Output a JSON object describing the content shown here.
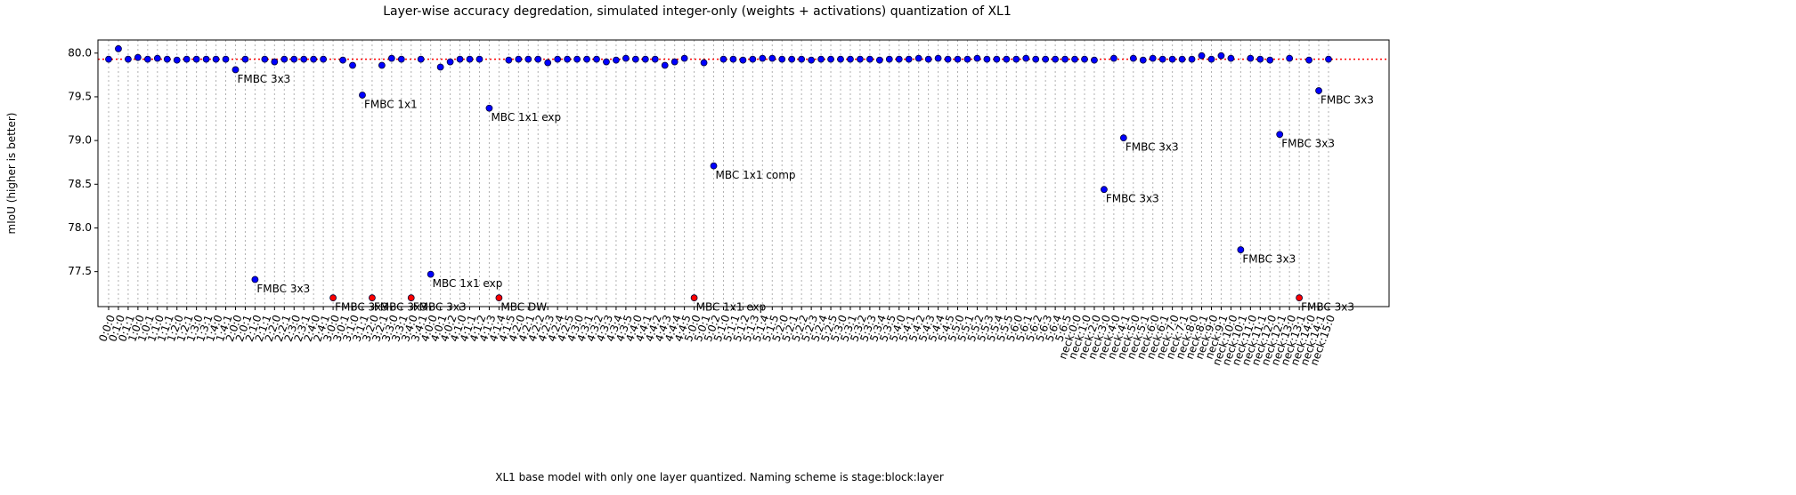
{
  "chart_data": {
    "type": "scatter",
    "title": "Layer-wise accuracy degredation, simulated integer-only (weights + activations) quantization of XL1",
    "x_label": "XL1 base model with only one layer quantized. Naming scheme is stage:block:layer",
    "y_label": "mIoU (higher is better)",
    "categories": [
      "0:0:0",
      "0:1:0",
      "0:1:1",
      "1:0:0",
      "1:0:1",
      "1:1:0",
      "1:1:1",
      "1:2:0",
      "1:2:1",
      "1:3:0",
      "1:3:1",
      "1:4:0",
      "1:4:1",
      "2:0:0",
      "2:0:1",
      "2:1:0",
      "2:1:1",
      "2:2:0",
      "2:2:1",
      "2:3:0",
      "2:3:1",
      "2:4:0",
      "2:4:1",
      "3:0:0",
      "3:0:1",
      "3:1:0",
      "3:1:1",
      "3:2:0",
      "3:2:1",
      "3:3:0",
      "3:3:1",
      "3:4:0",
      "3:4:1",
      "4:0:0",
      "4:0:1",
      "4:0:2",
      "4:1:0",
      "4:1:1",
      "4:1:2",
      "4:1:3",
      "4:1:4",
      "4:1:5",
      "4:2:0",
      "4:2:1",
      "4:2:2",
      "4:2:3",
      "4:2:4",
      "4:2:5",
      "4:3:0",
      "4:3:1",
      "4:3:2",
      "4:3:3",
      "4:3:4",
      "4:3:5",
      "4:4:0",
      "4:4:1",
      "4:4:2",
      "4:4:3",
      "4:4:4",
      "4:4:5",
      "5:0:0",
      "5:0:1",
      "5:0:2",
      "5:1:0",
      "5:1:1",
      "5:1:2",
      "5:1:3",
      "5:1:4",
      "5:1:5",
      "5:2:0",
      "5:2:1",
      "5:2:2",
      "5:2:3",
      "5:2:4",
      "5:2:5",
      "5:3:0",
      "5:3:1",
      "5:3:2",
      "5:3:3",
      "5:3:4",
      "5:3:5",
      "5:4:0",
      "5:4:1",
      "5:4:2",
      "5:4:3",
      "5:4:4",
      "5:4:5",
      "5:5:0",
      "5:5:1",
      "5:5:2",
      "5:5:3",
      "5:5:4",
      "5:5:5",
      "5:6:0",
      "5:6:1",
      "5:6:2",
      "5:6:3",
      "5:6:4",
      "5:6:5",
      "neck:0:0",
      "neck:1:0",
      "neck:2:0",
      "neck:3:0",
      "neck:4:0",
      "neck:4:1",
      "neck:5:0",
      "neck:5:1",
      "neck:6:0",
      "neck:6:1",
      "neck:7:0",
      "neck:7:1",
      "neck:8:0",
      "neck:8:1",
      "neck:9:0",
      "neck:9:1",
      "neck:10:0",
      "neck:10:1",
      "neck:11:0",
      "neck:11:1",
      "neck:12:0",
      "neck:12:1",
      "neck:13:0",
      "neck:13:1",
      "neck:14:0",
      "neck:14:1",
      "neck:15:0"
    ],
    "values": [
      79.93,
      80.05,
      79.93,
      79.95,
      79.93,
      79.94,
      79.93,
      79.92,
      79.93,
      79.93,
      79.93,
      79.93,
      79.93,
      79.81,
      79.93,
      77.41,
      79.93,
      79.9,
      79.93,
      79.93,
      79.93,
      79.93,
      79.93,
      77.2,
      79.92,
      79.86,
      79.52,
      77.2,
      79.86,
      79.94,
      79.93,
      77.2,
      79.93,
      77.47,
      79.84,
      79.9,
      79.93,
      79.93,
      79.93,
      79.37,
      77.2,
      79.92,
      79.93,
      79.93,
      79.93,
      79.89,
      79.93,
      79.93,
      79.93,
      79.93,
      79.93,
      79.9,
      79.92,
      79.94,
      79.93,
      79.93,
      79.93,
      79.86,
      79.9,
      79.94,
      77.2,
      79.89,
      78.71,
      79.93,
      79.93,
      79.92,
      79.93,
      79.94,
      79.94,
      79.93,
      79.93,
      79.93,
      79.92,
      79.93,
      79.93,
      79.93,
      79.93,
      79.93,
      79.93,
      79.92,
      79.93,
      79.93,
      79.93,
      79.94,
      79.93,
      79.94,
      79.93,
      79.93,
      79.93,
      79.94,
      79.93,
      79.93,
      79.93,
      79.93,
      79.94,
      79.93,
      79.93,
      79.93,
      79.93,
      79.93,
      79.93,
      79.92,
      78.44,
      79.94,
      79.03,
      79.94,
      79.92,
      79.94,
      79.93,
      79.93,
      79.93,
      79.93,
      79.97,
      79.93,
      79.97,
      79.94,
      77.75,
      79.94,
      79.93,
      79.92,
      79.07,
      79.94,
      77.2,
      79.92,
      79.57,
      79.93
    ],
    "colors": [
      "blue",
      "blue",
      "blue",
      "blue",
      "blue",
      "blue",
      "blue",
      "blue",
      "blue",
      "blue",
      "blue",
      "blue",
      "blue",
      "blue",
      "blue",
      "blue",
      "blue",
      "blue",
      "blue",
      "blue",
      "blue",
      "blue",
      "blue",
      "red",
      "blue",
      "blue",
      "blue",
      "red",
      "blue",
      "blue",
      "blue",
      "red",
      "blue",
      "blue",
      "blue",
      "blue",
      "blue",
      "blue",
      "blue",
      "blue",
      "red",
      "blue",
      "blue",
      "blue",
      "blue",
      "blue",
      "blue",
      "blue",
      "blue",
      "blue",
      "blue",
      "blue",
      "blue",
      "blue",
      "blue",
      "blue",
      "blue",
      "blue",
      "blue",
      "blue",
      "red",
      "blue",
      "blue",
      "blue",
      "blue",
      "blue",
      "blue",
      "blue",
      "blue",
      "blue",
      "blue",
      "blue",
      "blue",
      "blue",
      "blue",
      "blue",
      "blue",
      "blue",
      "blue",
      "blue",
      "blue",
      "blue",
      "blue",
      "blue",
      "blue",
      "blue",
      "blue",
      "blue",
      "blue",
      "blue",
      "blue",
      "blue",
      "blue",
      "blue",
      "blue",
      "blue",
      "blue",
      "blue",
      "blue",
      "blue",
      "blue",
      "blue",
      "blue",
      "blue",
      "blue",
      "blue",
      "blue",
      "blue",
      "blue",
      "blue",
      "blue",
      "blue",
      "blue",
      "blue",
      "blue",
      "blue",
      "blue",
      "blue",
      "blue",
      "blue",
      "blue",
      "blue",
      "red",
      "blue",
      "blue",
      "blue"
    ],
    "point_labels": [
      null,
      null,
      null,
      null,
      null,
      null,
      null,
      null,
      null,
      null,
      null,
      null,
      null,
      "FMBC 3x3",
      null,
      "FMBC 3x3",
      null,
      null,
      null,
      null,
      null,
      null,
      null,
      "FMBC 3x3",
      null,
      null,
      "FMBC 1x1",
      "FMBC 3x3",
      null,
      null,
      null,
      "FMBC 3x3",
      null,
      "MBC 1x1 exp",
      null,
      null,
      null,
      null,
      null,
      "MBC 1x1 exp",
      "MBC DW",
      null,
      null,
      null,
      null,
      null,
      null,
      null,
      null,
      null,
      null,
      null,
      null,
      null,
      null,
      null,
      null,
      null,
      null,
      null,
      "MBC 1x1 exp",
      null,
      "MBC 1x1 comp",
      null,
      null,
      null,
      null,
      null,
      null,
      null,
      null,
      null,
      null,
      null,
      null,
      null,
      null,
      null,
      null,
      null,
      null,
      null,
      null,
      null,
      null,
      null,
      null,
      null,
      null,
      null,
      null,
      null,
      null,
      null,
      null,
      null,
      null,
      null,
      null,
      null,
      null,
      null,
      "FMBC 3x3",
      null,
      "FMBC 3x3",
      null,
      null,
      null,
      null,
      null,
      null,
      null,
      null,
      null,
      null,
      null,
      "FMBC 3x3",
      null,
      null,
      null,
      "FMBC 3x3",
      null,
      "FMBC 3x3",
      null,
      "FMBC 3x3",
      null
    ],
    "hline": 79.93,
    "hline_color": "red",
    "ylim": [
      77.1,
      80.15
    ],
    "yticks": [
      77.5,
      {
        "value": 78,
        "label": "78.0"
      },
      78.5,
      {
        "value": 79,
        "label": "79.0"
      },
      79.5,
      {
        "value": 80,
        "label": "80.0"
      }
    ],
    "grid": true
  }
}
